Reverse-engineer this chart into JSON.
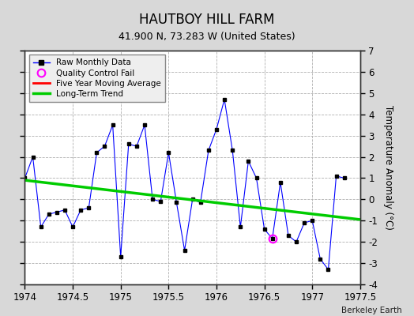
{
  "title": "HAUTBOY HILL FARM",
  "subtitle": "41.900 N, 73.283 W (United States)",
  "ylabel": "Temperature Anomaly (°C)",
  "credit": "Berkeley Earth",
  "xlim": [
    1974.0,
    1977.5
  ],
  "ylim": [
    -4,
    7
  ],
  "yticks": [
    -4,
    -3,
    -2,
    -1,
    0,
    1,
    2,
    3,
    4,
    5,
    6,
    7
  ],
  "xticks": [
    1974,
    1974.5,
    1975,
    1975.5,
    1976,
    1976.5,
    1977,
    1977.5
  ],
  "background_color": "#d8d8d8",
  "plot_bg_color": "#ffffff",
  "raw_x": [
    1974.0,
    1974.083,
    1974.167,
    1974.25,
    1974.333,
    1974.417,
    1974.5,
    1974.583,
    1974.667,
    1974.75,
    1974.833,
    1974.917,
    1975.0,
    1975.083,
    1975.167,
    1975.25,
    1975.333,
    1975.417,
    1975.5,
    1975.583,
    1975.667,
    1975.75,
    1975.833,
    1975.917,
    1976.0,
    1976.083,
    1976.167,
    1976.25,
    1976.333,
    1976.417,
    1976.5,
    1976.583,
    1976.667,
    1976.75,
    1976.833,
    1976.917,
    1977.0,
    1977.083,
    1977.167,
    1977.25,
    1977.333
  ],
  "raw_y": [
    1.0,
    2.0,
    -1.3,
    -0.7,
    -0.6,
    -0.5,
    -1.3,
    -0.5,
    -0.4,
    2.2,
    2.5,
    3.5,
    -2.7,
    2.6,
    2.5,
    3.5,
    0.0,
    -0.1,
    2.2,
    -0.15,
    -2.4,
    0.0,
    -0.15,
    2.3,
    3.3,
    4.7,
    2.3,
    -1.3,
    1.8,
    1.0,
    -1.4,
    -1.85,
    0.8,
    -1.7,
    -2.0,
    -1.1,
    -1.0,
    -2.8,
    -3.3,
    1.1,
    1.0
  ],
  "qc_fail_x": [
    1976.583
  ],
  "qc_fail_y": [
    -1.85
  ],
  "trend_x": [
    1974.0,
    1977.5
  ],
  "trend_y": [
    0.9,
    -0.95
  ],
  "line_color": "#0000ff",
  "marker_color": "#000000",
  "trend_color": "#00cc00",
  "moving_avg_color": "#ff0000",
  "qc_color": "#ff00ff",
  "grid_color": "#b0b0b0"
}
